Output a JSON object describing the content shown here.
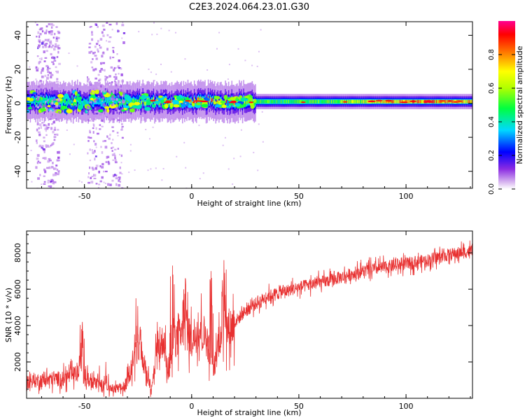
{
  "figure": {
    "title": "C2E3.2024.064.23.01.G30"
  },
  "colors": {
    "snr_line": "#e83030",
    "axes": "#000000",
    "background": "#ffffff"
  },
  "chart_data": [
    {
      "type": "heatmap",
      "title": "",
      "xlabel": "Height of straight line (km)",
      "ylabel": "Frequency (Hz)",
      "xlim": [
        -77,
        131
      ],
      "ylim": [
        -50,
        48
      ],
      "x_ticks": [
        -50,
        0,
        50,
        100
      ],
      "y_ticks": [
        -40,
        -20,
        0,
        20,
        40
      ],
      "colorbar": {
        "label": "Normalized spectral amplitude",
        "range": [
          0.0,
          1.0
        ],
        "ticks": [
          0.0,
          0.2,
          0.4,
          0.6,
          0.8
        ],
        "colormap": "rainbow (white-violet-blue-cyan-green-yellow-red-magenta)"
      },
      "ridge": {
        "description": "Narrow band of high spectral amplitude near 0 Hz spanning the full height range",
        "center_hz": 1,
        "core_amplitude_by_height": [
          {
            "x": -75,
            "amp": 0.45
          },
          {
            "x": -60,
            "amp": 0.5
          },
          {
            "x": -45,
            "amp": 0.35
          },
          {
            "x": -30,
            "amp": 0.55
          },
          {
            "x": -10,
            "amp": 0.75
          },
          {
            "x": 5,
            "amp": 0.8
          },
          {
            "x": 15,
            "amp": 0.9
          },
          {
            "x": 30,
            "amp": 0.5
          },
          {
            "x": 60,
            "amp": 0.55
          },
          {
            "x": 90,
            "amp": 0.75
          },
          {
            "x": 100,
            "amp": 0.85
          },
          {
            "x": 130,
            "amp": 0.75
          }
        ]
      },
      "scatter_columns": [
        {
          "x_range": [
            -73,
            -62
          ],
          "freq_range": [
            -50,
            48
          ]
        },
        {
          "x_range": [
            -49,
            -32
          ],
          "freq_range": [
            -50,
            48
          ]
        }
      ]
    },
    {
      "type": "line",
      "title": "",
      "xlabel": "Height of straight line (km)",
      "ylabel": "SNR (10 * v/v)",
      "xlim": [
        -77,
        131
      ],
      "ylim": [
        0,
        9200
      ],
      "x_ticks": [
        -50,
        0,
        50,
        100
      ],
      "y_ticks": [
        2000,
        4000,
        6000,
        8000
      ],
      "series": [
        {
          "values_trend": [
            {
              "x": -77,
              "y": 900
            },
            {
              "x": -70,
              "y": 1000
            },
            {
              "x": -60,
              "y": 1100
            },
            {
              "x": -52,
              "y": 1400
            },
            {
              "x": -48,
              "y": 1000
            },
            {
              "x": -42,
              "y": 600
            },
            {
              "x": -36,
              "y": 500
            },
            {
              "x": -31,
              "y": 600
            },
            {
              "x": -28,
              "y": 1800
            },
            {
              "x": -25,
              "y": 2800
            },
            {
              "x": -22,
              "y": 1800
            },
            {
              "x": -19,
              "y": 600
            },
            {
              "x": -16,
              "y": 2400
            },
            {
              "x": -13,
              "y": 3300
            },
            {
              "x": -11,
              "y": 1200
            },
            {
              "x": -8,
              "y": 3200
            },
            {
              "x": -4,
              "y": 3500
            },
            {
              "x": 0,
              "y": 3300
            },
            {
              "x": 4,
              "y": 3900
            },
            {
              "x": 7,
              "y": 3300
            },
            {
              "x": 10,
              "y": 1300
            },
            {
              "x": 13,
              "y": 3500
            },
            {
              "x": 18,
              "y": 3900
            },
            {
              "x": 25,
              "y": 4800
            },
            {
              "x": 35,
              "y": 5600
            },
            {
              "x": 50,
              "y": 6100
            },
            {
              "x": 65,
              "y": 6500
            },
            {
              "x": 80,
              "y": 7000
            },
            {
              "x": 95,
              "y": 7300
            },
            {
              "x": 110,
              "y": 7600
            },
            {
              "x": 120,
              "y": 7900
            },
            {
              "x": 131,
              "y": 8100
            }
          ],
          "spikes": [
            {
              "x": -51,
              "y": 4200
            },
            {
              "x": -43,
              "y": 1800
            },
            {
              "x": -40,
              "y": 2000
            },
            {
              "x": -26,
              "y": 5500
            },
            {
              "x": -16,
              "y": 4200
            },
            {
              "x": -9,
              "y": 7300
            },
            {
              "x": -3,
              "y": 6600
            },
            {
              "x": 9,
              "y": 7000
            },
            {
              "x": 15,
              "y": 7600
            }
          ]
        }
      ]
    }
  ]
}
